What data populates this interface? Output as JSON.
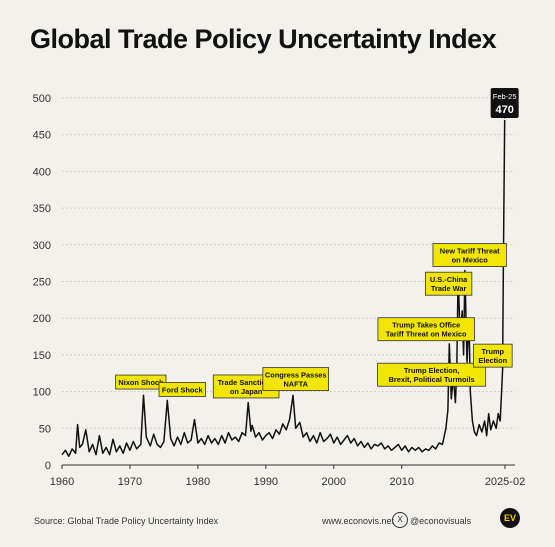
{
  "chart_data": {
    "type": "line",
    "title": "Global Trade Policy Uncertainty Index",
    "xlabel": "",
    "ylabel": "",
    "x_ticks": [
      "1960",
      "1970",
      "1980",
      "1990",
      "2000",
      "2010",
      "2025-02"
    ],
    "y_ticks": [
      "0",
      "50",
      "100",
      "150",
      "200",
      "250",
      "300",
      "350",
      "400",
      "450",
      "500"
    ],
    "ylim": [
      0,
      500
    ],
    "xlim": [
      1960,
      2025.2
    ],
    "grid": "horizontal",
    "line_color": "#111111",
    "label_color": "#f2e600",
    "series": [
      {
        "points": [
          [
            1960.0,
            14
          ],
          [
            1960.5,
            20
          ],
          [
            1961.0,
            12
          ],
          [
            1961.5,
            22
          ],
          [
            1962.0,
            16
          ],
          [
            1962.3,
            55
          ],
          [
            1962.6,
            24
          ],
          [
            1963.0,
            28
          ],
          [
            1963.5,
            48
          ],
          [
            1964.0,
            18
          ],
          [
            1964.5,
            28
          ],
          [
            1965.0,
            14
          ],
          [
            1965.5,
            40
          ],
          [
            1966.0,
            16
          ],
          [
            1966.5,
            24
          ],
          [
            1967.0,
            14
          ],
          [
            1967.5,
            35
          ],
          [
            1968.0,
            18
          ],
          [
            1968.5,
            26
          ],
          [
            1969.0,
            16
          ],
          [
            1969.5,
            30
          ],
          [
            1970.0,
            20
          ],
          [
            1970.5,
            32
          ],
          [
            1971.0,
            22
          ],
          [
            1971.6,
            28
          ],
          [
            1972.0,
            95
          ],
          [
            1972.4,
            38
          ],
          [
            1973.0,
            26
          ],
          [
            1973.5,
            42
          ],
          [
            1974.0,
            28
          ],
          [
            1974.5,
            24
          ],
          [
            1975.0,
            32
          ],
          [
            1975.5,
            88
          ],
          [
            1976.0,
            36
          ],
          [
            1976.5,
            26
          ],
          [
            1977.0,
            38
          ],
          [
            1977.5,
            28
          ],
          [
            1978.0,
            44
          ],
          [
            1978.5,
            30
          ],
          [
            1979.0,
            34
          ],
          [
            1979.5,
            62
          ],
          [
            1980.0,
            30
          ],
          [
            1980.5,
            36
          ],
          [
            1981.0,
            28
          ],
          [
            1981.5,
            40
          ],
          [
            1982.0,
            30
          ],
          [
            1982.5,
            36
          ],
          [
            1983.0,
            28
          ],
          [
            1983.5,
            40
          ],
          [
            1984.0,
            30
          ],
          [
            1984.5,
            44
          ],
          [
            1985.0,
            34
          ],
          [
            1985.5,
            38
          ],
          [
            1986.0,
            32
          ],
          [
            1986.5,
            44
          ],
          [
            1987.0,
            40
          ],
          [
            1987.4,
            85
          ],
          [
            1987.8,
            46
          ],
          [
            1988.0,
            54
          ],
          [
            1988.5,
            38
          ],
          [
            1989.0,
            44
          ],
          [
            1989.5,
            34
          ],
          [
            1990.0,
            40
          ],
          [
            1990.5,
            44
          ],
          [
            1991.0,
            36
          ],
          [
            1991.5,
            48
          ],
          [
            1992.0,
            42
          ],
          [
            1992.5,
            56
          ],
          [
            1993.0,
            48
          ],
          [
            1993.5,
            62
          ],
          [
            1994.0,
            95
          ],
          [
            1994.4,
            50
          ],
          [
            1995.0,
            58
          ],
          [
            1995.5,
            38
          ],
          [
            1996.0,
            44
          ],
          [
            1996.5,
            32
          ],
          [
            1997.0,
            40
          ],
          [
            1997.5,
            30
          ],
          [
            1998.0,
            44
          ],
          [
            1998.5,
            32
          ],
          [
            1999.0,
            36
          ],
          [
            1999.5,
            42
          ],
          [
            2000.0,
            30
          ],
          [
            2000.5,
            38
          ],
          [
            2001.0,
            28
          ],
          [
            2001.5,
            34
          ],
          [
            2002.0,
            40
          ],
          [
            2002.5,
            30
          ],
          [
            2003.0,
            36
          ],
          [
            2003.5,
            26
          ],
          [
            2004.0,
            32
          ],
          [
            2004.5,
            24
          ],
          [
            2005.0,
            30
          ],
          [
            2005.5,
            22
          ],
          [
            2006.0,
            28
          ],
          [
            2006.5,
            26
          ],
          [
            2007.0,
            30
          ],
          [
            2007.5,
            22
          ],
          [
            2008.0,
            26
          ],
          [
            2008.5,
            20
          ],
          [
            2009.0,
            24
          ],
          [
            2009.5,
            28
          ],
          [
            2010.0,
            20
          ],
          [
            2010.5,
            26
          ],
          [
            2011.0,
            18
          ],
          [
            2011.5,
            24
          ],
          [
            2012.0,
            20
          ],
          [
            2012.5,
            24
          ],
          [
            2013.0,
            18
          ],
          [
            2013.5,
            22
          ],
          [
            2014.0,
            20
          ],
          [
            2014.5,
            26
          ],
          [
            2015.0,
            22
          ],
          [
            2015.5,
            30
          ],
          [
            2016.0,
            28
          ],
          [
            2016.5,
            50
          ],
          [
            2016.8,
            75
          ],
          [
            2017.0,
            165
          ],
          [
            2017.3,
            90
          ],
          [
            2017.6,
            120
          ],
          [
            2017.9,
            85
          ],
          [
            2018.1,
            130
          ],
          [
            2018.3,
            260
          ],
          [
            2018.6,
            170
          ],
          [
            2018.9,
            210
          ],
          [
            2019.1,
            150
          ],
          [
            2019.3,
            265
          ],
          [
            2019.6,
            140
          ],
          [
            2019.9,
            200
          ],
          [
            2020.1,
            100
          ],
          [
            2020.4,
            60
          ],
          [
            2020.7,
            45
          ],
          [
            2021.0,
            40
          ],
          [
            2021.4,
            55
          ],
          [
            2021.8,
            45
          ],
          [
            2022.2,
            60
          ],
          [
            2022.5,
            40
          ],
          [
            2022.8,
            70
          ],
          [
            2023.1,
            48
          ],
          [
            2023.5,
            60
          ],
          [
            2023.9,
            50
          ],
          [
            2024.2,
            70
          ],
          [
            2024.5,
            60
          ],
          [
            2024.7,
            100
          ],
          [
            2024.85,
            130
          ],
          [
            2024.95,
            260
          ],
          [
            2025.05,
            370
          ],
          [
            2025.15,
            470
          ]
        ]
      }
    ],
    "annotations": [
      {
        "label": "Nixon Shock",
        "lines": [
          "Nixon Shock"
        ]
      },
      {
        "label": "Ford Shock",
        "lines": [
          "Ford Shock"
        ]
      },
      {
        "label": "Trade Sanctions on Japan",
        "lines": [
          "Trade Sanctions",
          "on Japan"
        ]
      },
      {
        "label": "Congress Passes NAFTA",
        "lines": [
          "Congress Passes",
          "NAFTA"
        ]
      },
      {
        "label": "Trump Election, Brexit, Political Turmoils",
        "lines": [
          "Trump Election,",
          "Brexit, Political Turmoils"
        ]
      },
      {
        "label": "Trump Takes Office Tariff Threat on Mexico",
        "lines": [
          "Trump Takes Office",
          "Tariff Threat on Mexico"
        ]
      },
      {
        "label": "U.S.-China Trade War",
        "lines": [
          "U.S.-China",
          "Trade War"
        ]
      },
      {
        "label": "New Tariff Threat on Mexico",
        "lines": [
          "New Tariff Threat",
          "on Mexico"
        ]
      },
      {
        "label": "Trump Election",
        "lines": [
          "Trump",
          "Election"
        ]
      }
    ],
    "callout": {
      "date": "Feb-25",
      "value": "470"
    }
  },
  "footer": {
    "source": "Source: Global Trade Policy Uncertainty Index",
    "website": "www.econovis.net",
    "x_icon": "X",
    "handle": "@econovisuals",
    "logo": "EV"
  }
}
